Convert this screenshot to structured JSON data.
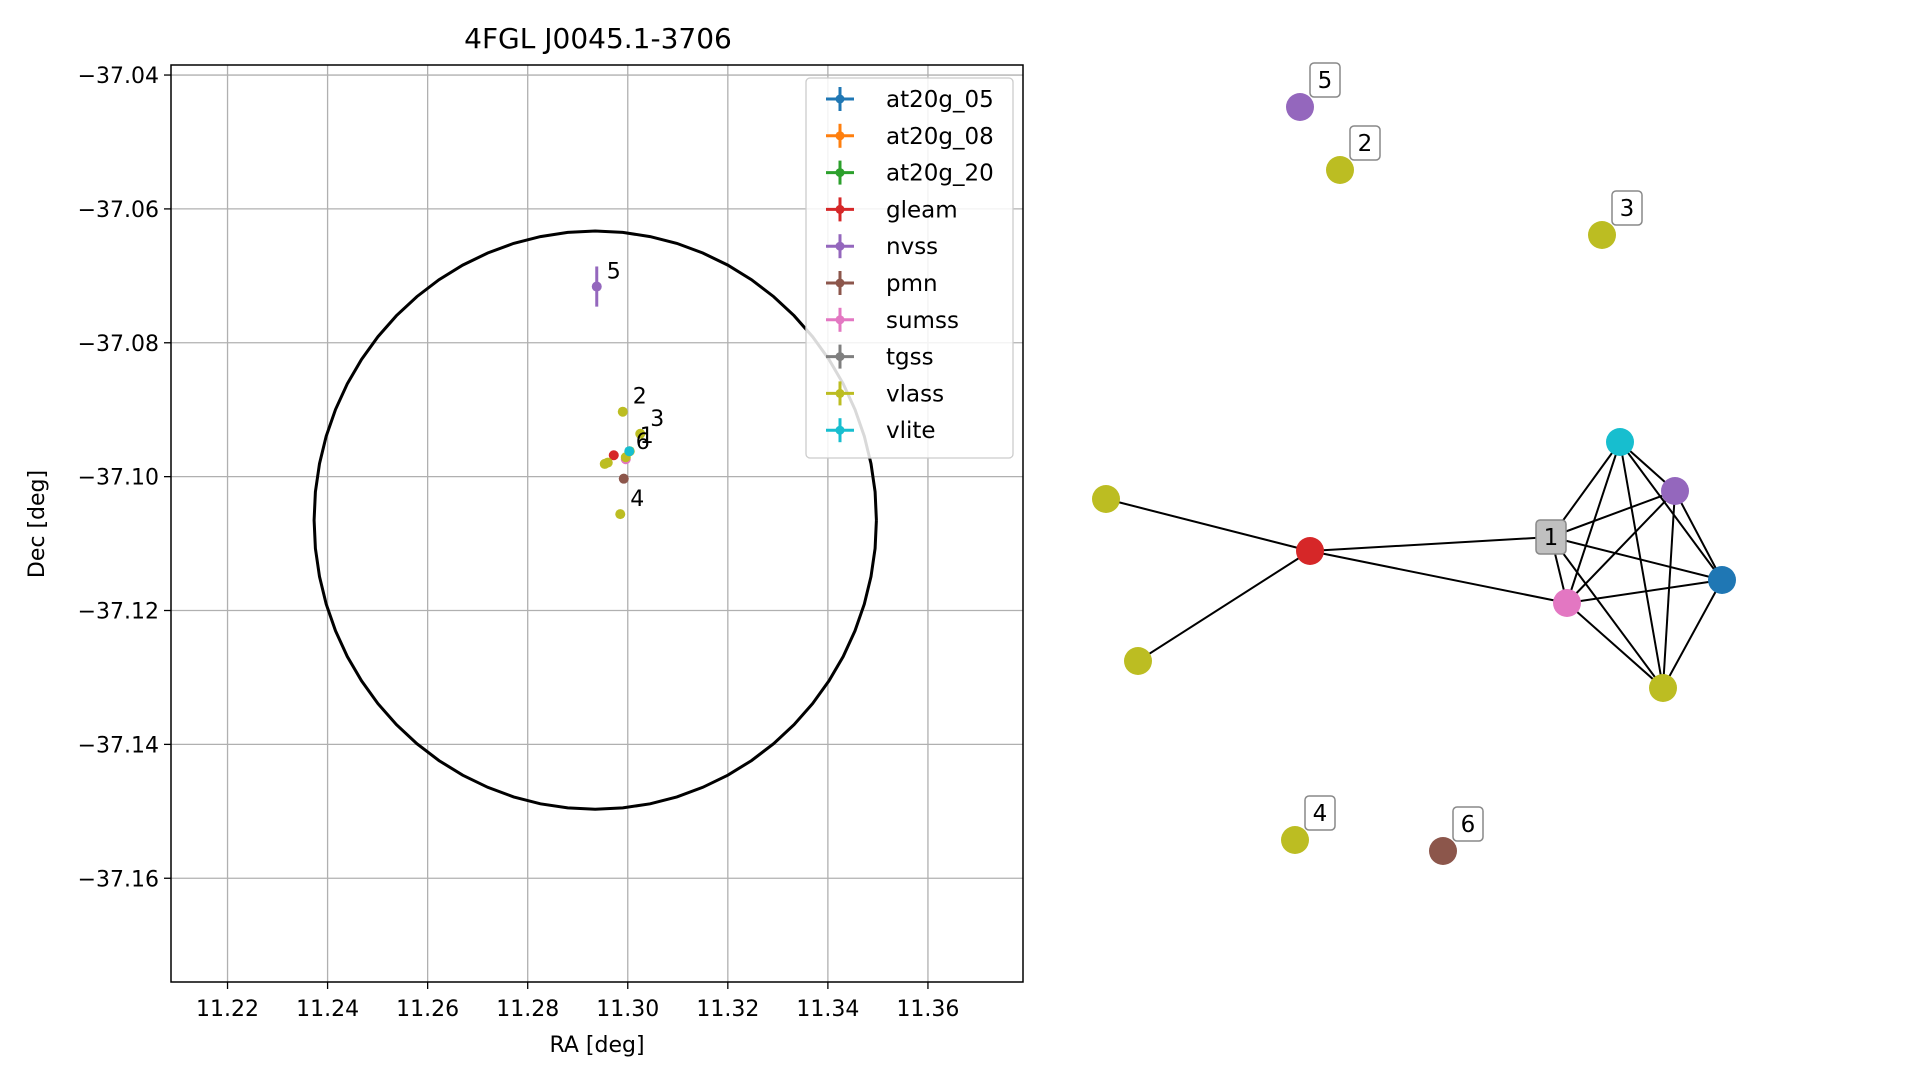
{
  "chart_data": [
    {
      "type": "scatter",
      "title": "4FGL J0045.1-3706",
      "xlabel": "RA [deg]",
      "ylabel": "Dec [deg]",
      "xlim": [
        11.2087,
        11.379
      ],
      "ylim": [
        -37.1755,
        -37.0385
      ],
      "xticks": [
        11.22,
        11.24,
        11.26,
        11.28,
        11.3,
        11.32,
        11.34,
        11.36
      ],
      "xtick_labels": [
        "11.22",
        "11.24",
        "11.26",
        "11.28",
        "11.30",
        "11.32",
        "11.34",
        "11.36"
      ],
      "yticks": [
        -37.04,
        -37.06,
        -37.08,
        -37.1,
        -37.12,
        -37.14,
        -37.16
      ],
      "ytick_labels": [
        "−37.04",
        "−37.06",
        "−37.08",
        "−37.10",
        "−37.12",
        "−37.14",
        "−37.16"
      ],
      "grid": true,
      "legend_position": "top-right",
      "circle": {
        "center_ra": 11.2935,
        "center_dec": -37.1065,
        "radius_ra": 0.0562,
        "radius_dec": 0.0432,
        "color": "#000000"
      },
      "series": [
        {
          "name": "at20g_05",
          "color": "#1f77b4",
          "points": []
        },
        {
          "name": "at20g_08",
          "color": "#ff7f0e",
          "points": []
        },
        {
          "name": "at20g_20",
          "color": "#2ca02c",
          "points": []
        },
        {
          "name": "gleam",
          "color": "#d62728",
          "points": [
            {
              "x": 11.2972,
              "y": -37.0968
            }
          ]
        },
        {
          "name": "nvss",
          "color": "#9467bd",
          "points": [
            {
              "x": 11.2938,
              "y": -37.0716,
              "xerr": 0.0007,
              "yerr": 0.003,
              "label": "5"
            }
          ]
        },
        {
          "name": "pmn",
          "color": "#8c564b",
          "points": [
            {
              "x": 11.2992,
              "y": -37.1003
            }
          ]
        },
        {
          "name": "sumss",
          "color": "#e377c2",
          "points": [
            {
              "x": 11.2996,
              "y": -37.0974
            }
          ]
        },
        {
          "name": "tgss",
          "color": "#7f7f7f",
          "points": []
        },
        {
          "name": "vlass",
          "color": "#bcbd22",
          "points": [
            {
              "x": 11.299,
              "y": -37.0903,
              "label": "2"
            },
            {
              "x": 11.3025,
              "y": -37.0936,
              "label": "3"
            },
            {
              "x": 11.2985,
              "y": -37.1056,
              "label": "4"
            },
            {
              "x": 11.2996,
              "y": -37.0971,
              "label": "6"
            },
            {
              "x": 11.3004,
              "y": -37.0962,
              "label": "1"
            },
            {
              "x": 11.296,
              "y": -37.0979
            },
            {
              "x": 11.2954,
              "y": -37.0981
            }
          ]
        },
        {
          "name": "vlite",
          "color": "#17becf",
          "points": [
            {
              "x": 11.3003,
              "y": -37.0962
            }
          ]
        }
      ]
    },
    {
      "type": "network",
      "nodes": [
        {
          "id": "n5",
          "color": "#9467bd",
          "label": "5"
        },
        {
          "id": "n2",
          "color": "#bcbd22",
          "label": "2"
        },
        {
          "id": "n3",
          "color": "#bcbd22",
          "label": "3"
        },
        {
          "id": "n4",
          "color": "#bcbd22",
          "label": "4"
        },
        {
          "id": "n6",
          "color": "#8c564b",
          "label": "6"
        },
        {
          "id": "gleam",
          "color": "#d62728",
          "label": ""
        },
        {
          "id": "vl_a",
          "color": "#bcbd22",
          "label": ""
        },
        {
          "id": "vl_b",
          "color": "#bcbd22",
          "label": ""
        },
        {
          "id": "n1",
          "color": "#7f7f7f",
          "label": "1"
        },
        {
          "id": "sumss",
          "color": "#e377c2",
          "label": ""
        },
        {
          "id": "vlite",
          "color": "#17becf",
          "label": ""
        },
        {
          "id": "nvss2",
          "color": "#9467bd",
          "label": ""
        },
        {
          "id": "at20g",
          "color": "#1f77b4",
          "label": ""
        },
        {
          "id": "vl_c",
          "color": "#bcbd22",
          "label": ""
        }
      ],
      "edges": [
        [
          "vl_a",
          "gleam"
        ],
        [
          "vl_b",
          "gleam"
        ],
        [
          "gleam",
          "n1"
        ],
        [
          "gleam",
          "sumss"
        ],
        [
          "n1",
          "vlite"
        ],
        [
          "n1",
          "nvss2"
        ],
        [
          "n1",
          "at20g"
        ],
        [
          "n1",
          "sumss"
        ],
        [
          "n1",
          "vl_c"
        ],
        [
          "vlite",
          "nvss2"
        ],
        [
          "vlite",
          "at20g"
        ],
        [
          "vlite",
          "sumss"
        ],
        [
          "vlite",
          "vl_c"
        ],
        [
          "nvss2",
          "at20g"
        ],
        [
          "nvss2",
          "sumss"
        ],
        [
          "nvss2",
          "vl_c"
        ],
        [
          "at20g",
          "sumss"
        ],
        [
          "at20g",
          "vl_c"
        ],
        [
          "sumss",
          "vl_c"
        ]
      ]
    }
  ]
}
